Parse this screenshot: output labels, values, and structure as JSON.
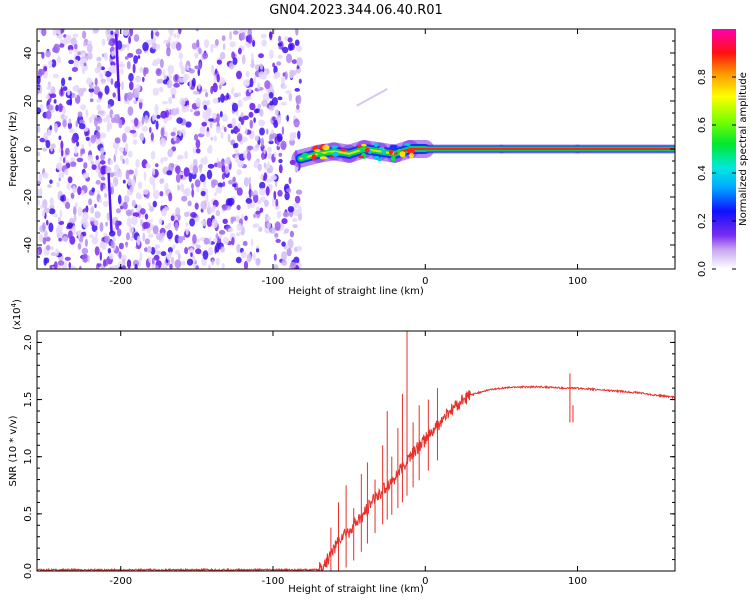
{
  "title": "GN04.2023.344.06.40.R01",
  "chart_data": [
    {
      "type": "heatmap",
      "xlabel": "Height of straight line (km)",
      "ylabel": "Frequency (Hz)",
      "xlim": [
        -255,
        164
      ],
      "ylim": [
        -50,
        50
      ],
      "xticks": [
        -200,
        -100,
        0,
        100
      ],
      "yticks": [
        -40,
        -20,
        0,
        20,
        40
      ],
      "noise_region": [
        -255,
        -82
      ],
      "signal_track": [
        {
          "x": -82,
          "y": -4
        },
        {
          "x": -70,
          "y": -2
        },
        {
          "x": -60,
          "y": -1
        },
        {
          "x": -50,
          "y": -2
        },
        {
          "x": -40,
          "y": 0
        },
        {
          "x": -30,
          "y": -1
        },
        {
          "x": -20,
          "y": -2
        },
        {
          "x": -10,
          "y": 0
        },
        {
          "x": 0,
          "y": 0
        },
        {
          "x": 50,
          "y": 0
        },
        {
          "x": 100,
          "y": 0
        },
        {
          "x": 164,
          "y": 0
        }
      ],
      "colorbar": {
        "label": "Normalized spectral amplitude",
        "ticks": [
          "0.0",
          "0.2",
          "0.4",
          "0.6",
          "0.8"
        ],
        "range": [
          0,
          1
        ]
      }
    },
    {
      "type": "line",
      "xlabel": "Height of straight line (km)",
      "ylabel": "SNR (10 * v/v)",
      "ylabel_multiplier": "(x10",
      "ylabel_exponent": "4",
      "xlim": [
        -255,
        164
      ],
      "ylim": [
        0,
        2.1
      ],
      "xticks": [
        -200,
        -100,
        0,
        100
      ],
      "yticks": [
        "0.0",
        "0.5",
        "1.0",
        "1.5",
        "2.0"
      ],
      "color": "#e8302a",
      "series": [
        {
          "points": [
            [
              -255,
              0.01
            ],
            [
              -200,
              0.01
            ],
            [
              -150,
              0.01
            ],
            [
              -100,
              0.01
            ],
            [
              -70,
              0.01
            ],
            [
              -65,
              0.08
            ],
            [
              -60,
              0.2
            ],
            [
              -55,
              0.3
            ],
            [
              -50,
              0.35
            ],
            [
              -45,
              0.42
            ],
            [
              -40,
              0.5
            ],
            [
              -35,
              0.6
            ],
            [
              -30,
              0.68
            ],
            [
              -25,
              0.75
            ],
            [
              -20,
              0.82
            ],
            [
              -15,
              0.9
            ],
            [
              -10,
              1.0
            ],
            [
              -5,
              1.08
            ],
            [
              0,
              1.15
            ],
            [
              5,
              1.22
            ],
            [
              10,
              1.3
            ],
            [
              15,
              1.38
            ],
            [
              20,
              1.44
            ],
            [
              25,
              1.5
            ],
            [
              30,
              1.54
            ],
            [
              40,
              1.58
            ],
            [
              50,
              1.6
            ],
            [
              60,
              1.61
            ],
            [
              70,
              1.61
            ],
            [
              80,
              1.61
            ],
            [
              90,
              1.6
            ],
            [
              100,
              1.6
            ],
            [
              110,
              1.59
            ],
            [
              120,
              1.58
            ],
            [
              130,
              1.57
            ],
            [
              140,
              1.56
            ],
            [
              150,
              1.54
            ],
            [
              164,
              1.52
            ]
          ],
          "spikes": [
            [
              -62,
              0.38
            ],
            [
              -57,
              0.6
            ],
            [
              -52,
              0.75
            ],
            [
              -47,
              0.55
            ],
            [
              -42,
              0.85
            ],
            [
              -38,
              0.95
            ],
            [
              -33,
              0.8
            ],
            [
              -28,
              1.1
            ],
            [
              -25,
              1.4
            ],
            [
              -22,
              1.0
            ],
            [
              -18,
              1.25
            ],
            [
              -15,
              1.55
            ],
            [
              -12,
              2.1
            ],
            [
              -8,
              1.3
            ],
            [
              -4,
              1.45
            ],
            [
              2,
              1.5
            ],
            [
              8,
              1.6
            ],
            [
              95,
              1.73
            ],
            [
              97,
              1.45
            ]
          ]
        }
      ]
    }
  ]
}
